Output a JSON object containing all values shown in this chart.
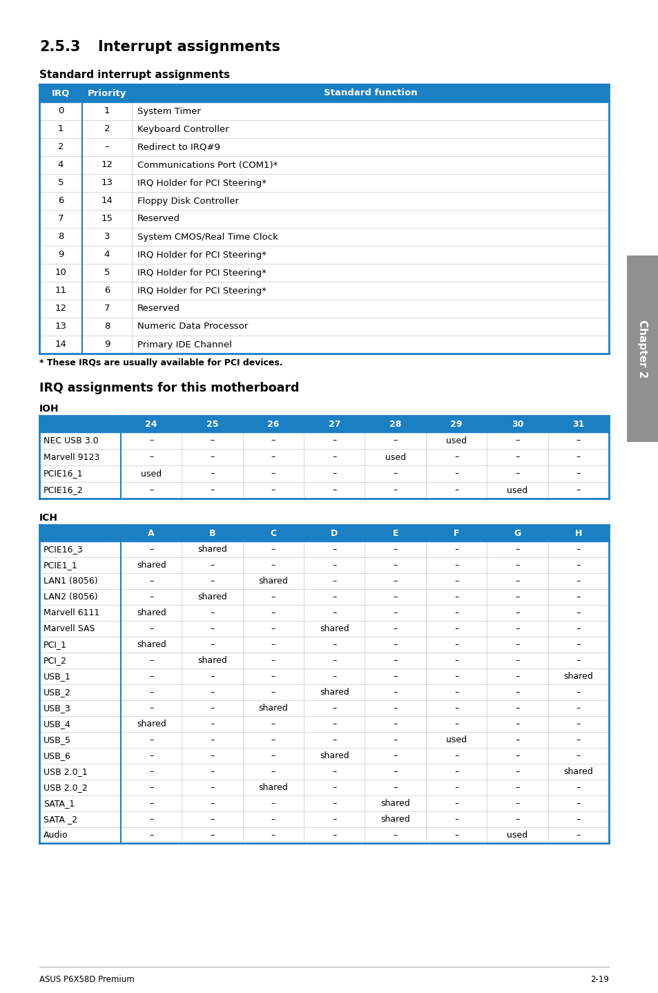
{
  "title_section": "2.5.3",
  "title_section2": "Interrupt assignments",
  "subtitle1": "Standard interrupt assignments",
  "subtitle2": "IRQ assignments for this motherboard",
  "ioh_label": "IOH",
  "ich_label": "ICH",
  "header_color": "#1b7fc4",
  "header_text_color": "#ffffff",
  "border_color": "#1b7fc4",
  "cell_border_color": "#c8c8c8",
  "footnote": "* These IRQs are usually available for PCI devices.",
  "footer_left": "ASUS P6X58D Premium",
  "footer_right": "2-19",
  "std_table_headers": [
    "IRQ",
    "Priority",
    "Standard function"
  ],
  "std_table_data": [
    [
      "0",
      "1",
      "System Timer"
    ],
    [
      "1",
      "2",
      "Keyboard Controller"
    ],
    [
      "2",
      "–",
      "Redirect to IRQ#9"
    ],
    [
      "4",
      "12",
      "Communications Port (COM1)*"
    ],
    [
      "5",
      "13",
      "IRQ Holder for PCI Steering*"
    ],
    [
      "6",
      "14",
      "Floppy Disk Controller"
    ],
    [
      "7",
      "15",
      "Reserved"
    ],
    [
      "8",
      "3",
      "System CMOS/Real Time Clock"
    ],
    [
      "9",
      "4",
      "IRQ Holder for PCI Steering*"
    ],
    [
      "10",
      "5",
      "IRQ Holder for PCI Steering*"
    ],
    [
      "11",
      "6",
      "IRQ Holder for PCI Steering*"
    ],
    [
      "12",
      "7",
      "Reserved"
    ],
    [
      "13",
      "8",
      "Numeric Data Processor"
    ],
    [
      "14",
      "9",
      "Primary IDE Channel"
    ]
  ],
  "ioh_headers": [
    "",
    "24",
    "25",
    "26",
    "27",
    "28",
    "29",
    "30",
    "31"
  ],
  "ioh_data": [
    [
      "NEC USB 3.0",
      "–",
      "–",
      "–",
      "–",
      "–",
      "used",
      "–",
      "–"
    ],
    [
      "Marvell 9123",
      "–",
      "–",
      "–",
      "–",
      "used",
      "–",
      "–",
      "–"
    ],
    [
      "PCIE16_1",
      "used",
      "–",
      "–",
      "–",
      "–",
      "–",
      "–",
      "–"
    ],
    [
      "PCIE16_2",
      "–",
      "–",
      "–",
      "–",
      "–",
      "–",
      "used",
      "–"
    ]
  ],
  "ich_headers": [
    "",
    "A",
    "B",
    "C",
    "D",
    "E",
    "F",
    "G",
    "H"
  ],
  "ich_data": [
    [
      "PCIE16_3",
      "–",
      "shared",
      "–",
      "–",
      "–",
      "–",
      "–",
      "–"
    ],
    [
      "PCIE1_1",
      "shared",
      "–",
      "–",
      "–",
      "–",
      "–",
      "–",
      "–"
    ],
    [
      "LAN1 (8056)",
      "–",
      "–",
      "shared",
      "–",
      "–",
      "–",
      "–",
      "–"
    ],
    [
      "LAN2 (8056)",
      "–",
      "shared",
      "–",
      "–",
      "–",
      "–",
      "–",
      "–"
    ],
    [
      "Marvell 6111",
      "shared",
      "–",
      "–",
      "–",
      "–",
      "–",
      "–",
      "–"
    ],
    [
      "Marvell SAS",
      "–",
      "–",
      "–",
      "shared",
      "–",
      "–",
      "–",
      "–"
    ],
    [
      "PCI_1",
      "shared",
      "–",
      "–",
      "–",
      "–",
      "–",
      "–",
      "–"
    ],
    [
      "PCI_2",
      "–",
      "shared",
      "–",
      "–",
      "–",
      "–",
      "–",
      "–"
    ],
    [
      "USB_1",
      "–",
      "–",
      "–",
      "–",
      "–",
      "–",
      "–",
      "shared"
    ],
    [
      "USB_2",
      "–",
      "–",
      "–",
      "shared",
      "–",
      "–",
      "–",
      "–"
    ],
    [
      "USB_3",
      "–",
      "–",
      "shared",
      "–",
      "–",
      "–",
      "–",
      "–"
    ],
    [
      "USB_4",
      "shared",
      "–",
      "–",
      "–",
      "–",
      "–",
      "–",
      "–"
    ],
    [
      "USB_5",
      "–",
      "–",
      "–",
      "–",
      "–",
      "used",
      "–",
      "–"
    ],
    [
      "USB_6",
      "–",
      "–",
      "–",
      "shared",
      "–",
      "–",
      "–",
      "–"
    ],
    [
      "USB 2.0_1",
      "–",
      "–",
      "–",
      "–",
      "–",
      "–",
      "–",
      "shared"
    ],
    [
      "USB 2.0_2",
      "–",
      "–",
      "shared",
      "–",
      "–",
      "–",
      "–",
      "–"
    ],
    [
      "SATA_1",
      "–",
      "–",
      "–",
      "–",
      "shared",
      "–",
      "–",
      "–"
    ],
    [
      "SATA _2",
      "–",
      "–",
      "–",
      "–",
      "shared",
      "–",
      "–",
      "–"
    ],
    [
      "Audio",
      "–",
      "–",
      "–",
      "–",
      "–",
      "–",
      "used",
      "–"
    ]
  ],
  "sidebar_color": "#909090",
  "sidebar_text": "Chapter 2"
}
